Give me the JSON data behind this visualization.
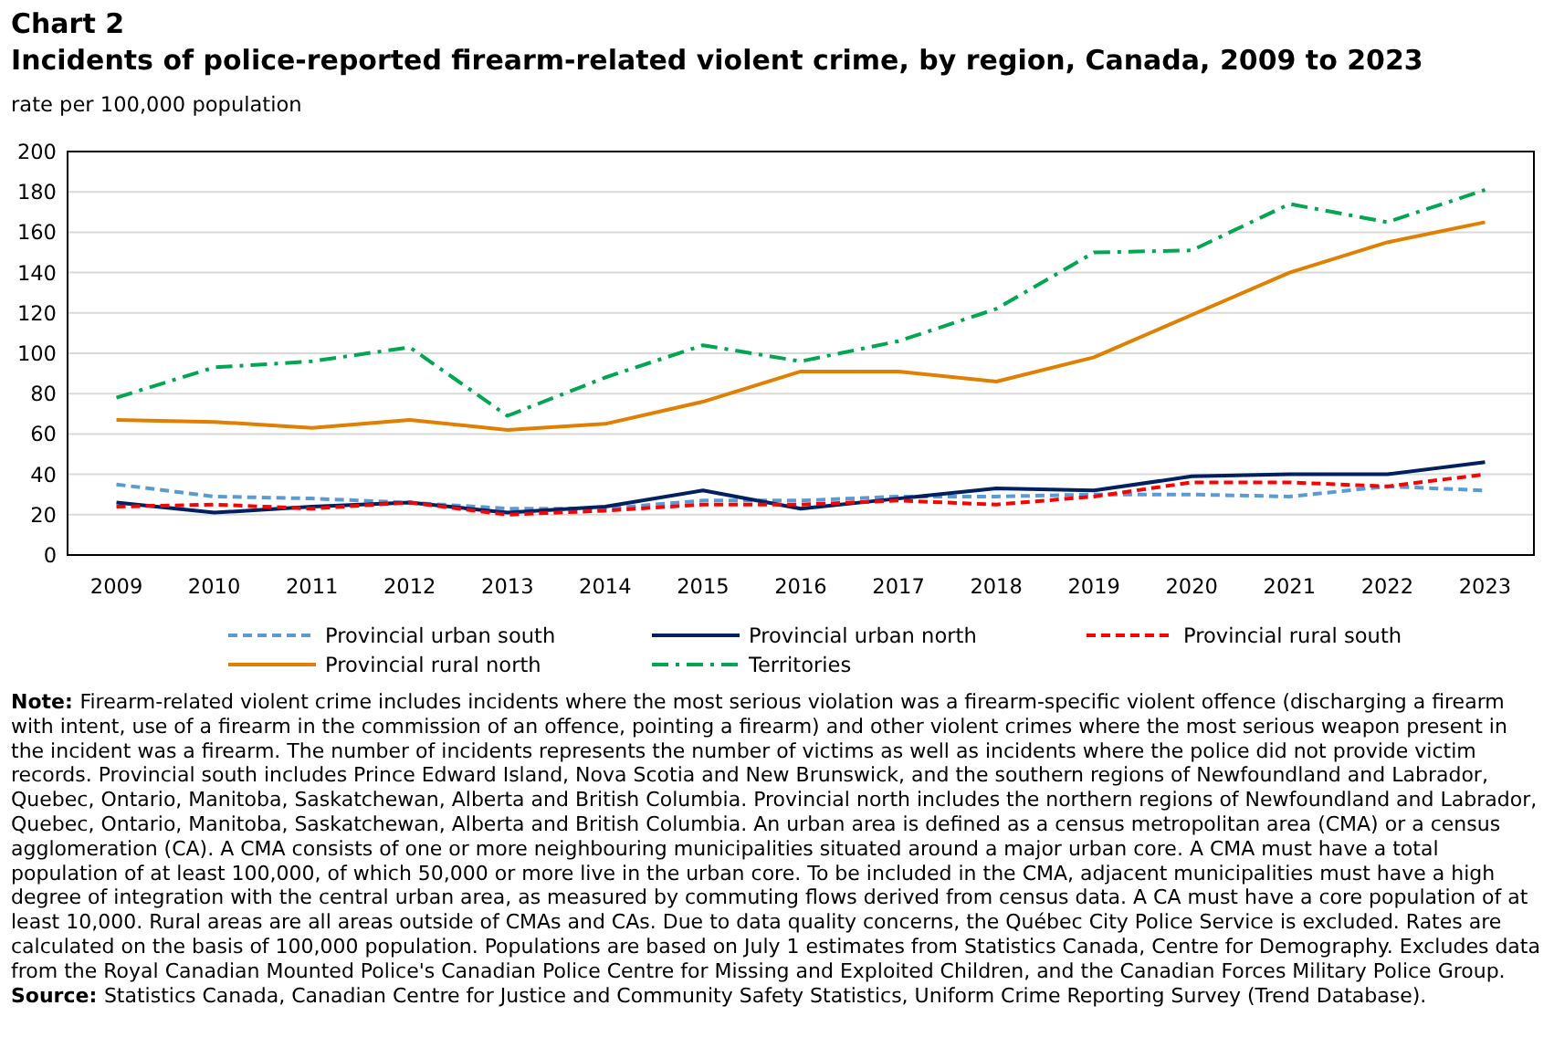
{
  "chart_data": {
    "type": "line",
    "title": "Chart 2",
    "subtitle": "Incidents of police-reported firearm-related violent crime, by region, Canada, 2009 to 2023",
    "ylabel": "rate per 100,000 population",
    "categories": [
      "2009",
      "2010",
      "2011",
      "2012",
      "2013",
      "2014",
      "2015",
      "2016",
      "2017",
      "2018",
      "2019",
      "2020",
      "2021",
      "2022",
      "2023"
    ],
    "series": [
      {
        "name": "Provincial urban south",
        "color": "#5b9bd5",
        "line_style": "dashed",
        "values": [
          35,
          29,
          28,
          26,
          23,
          23,
          27,
          27,
          29,
          29,
          30,
          30,
          29,
          34,
          32
        ]
      },
      {
        "name": "Provincial urban north",
        "color": "#002060",
        "line_style": "solid",
        "values": [
          26,
          21,
          24,
          26,
          21,
          24,
          32,
          23,
          28,
          33,
          32,
          39,
          40,
          40,
          46
        ]
      },
      {
        "name": "Provincial rural south",
        "color": "#ff0000",
        "line_style": "dashed",
        "values": [
          24,
          25,
          23,
          26,
          20,
          22,
          25,
          25,
          27,
          25,
          29,
          36,
          36,
          34,
          40
        ]
      },
      {
        "name": "Provincial rural north",
        "color": "#e07f00",
        "line_style": "solid",
        "values": [
          67,
          66,
          63,
          67,
          62,
          65,
          76,
          91,
          91,
          86,
          98,
          119,
          140,
          155,
          165
        ]
      },
      {
        "name": "Territories",
        "color": "#00a650",
        "line_style": "dashdot",
        "values": [
          78,
          93,
          96,
          103,
          69,
          88,
          104,
          96,
          106,
          122,
          150,
          151,
          174,
          165,
          181
        ]
      }
    ],
    "ylim": [
      0,
      200
    ],
    "yticks": [
      0,
      20,
      40,
      60,
      80,
      100,
      120,
      140,
      160,
      180,
      200
    ],
    "grid": "y",
    "legend": "bottom",
    "annotations": [
      "Note: Firearm-related violent crime includes incidents where the most serious violation was a firearm-specific violent offence (discharging a firearm with intent, use of a firearm in the commission of an offence, pointing a firearm) and other violent crimes where the most serious weapon present in the incident was a firearm. The number of incidents represents the number of victims as well as incidents where the police did not provide victim records. Provincial south includes Prince Edward Island, Nova Scotia and New Brunswick, and the southern regions of Newfoundland and Labrador, Quebec, Ontario, Manitoba, Saskatchewan, Alberta and British Columbia. Provincial north includes the northern regions of Newfoundland and Labrador, Quebec, Ontario, Manitoba, Saskatchewan, Alberta and British Columbia. An urban area is defined as a census metropolitan area (CMA) or a census agglomeration (CA). A CMA consists of one or more neighbouring municipalities situated around a major urban core. A CMA must have a total population of at least 100,000, of which 50,000 or more live in the urban core. To be included in the CMA, adjacent municipalities must have a high degree of integration with the central urban area, as measured by commuting flows derived from census data. A CA must have a core population of at least 10,000. Rural areas are all areas outside of CMAs and CAs. Due to data quality concerns, the Québec City Police Service is excluded. Rates are calculated on the basis of 100,000 population. Populations are based on July 1 estimates from Statistics Canada, Centre for Demography. Excludes data from the Royal Canadian Mounted Police's Canadian Police Centre for Missing and Exploited Children, and the Canadian Forces Military Police Group.",
      "Source: Statistics Canada, Canadian Centre for Justice and Community Safety Statistics, Uniform Crime Reporting Survey (Trend Database)."
    ]
  }
}
